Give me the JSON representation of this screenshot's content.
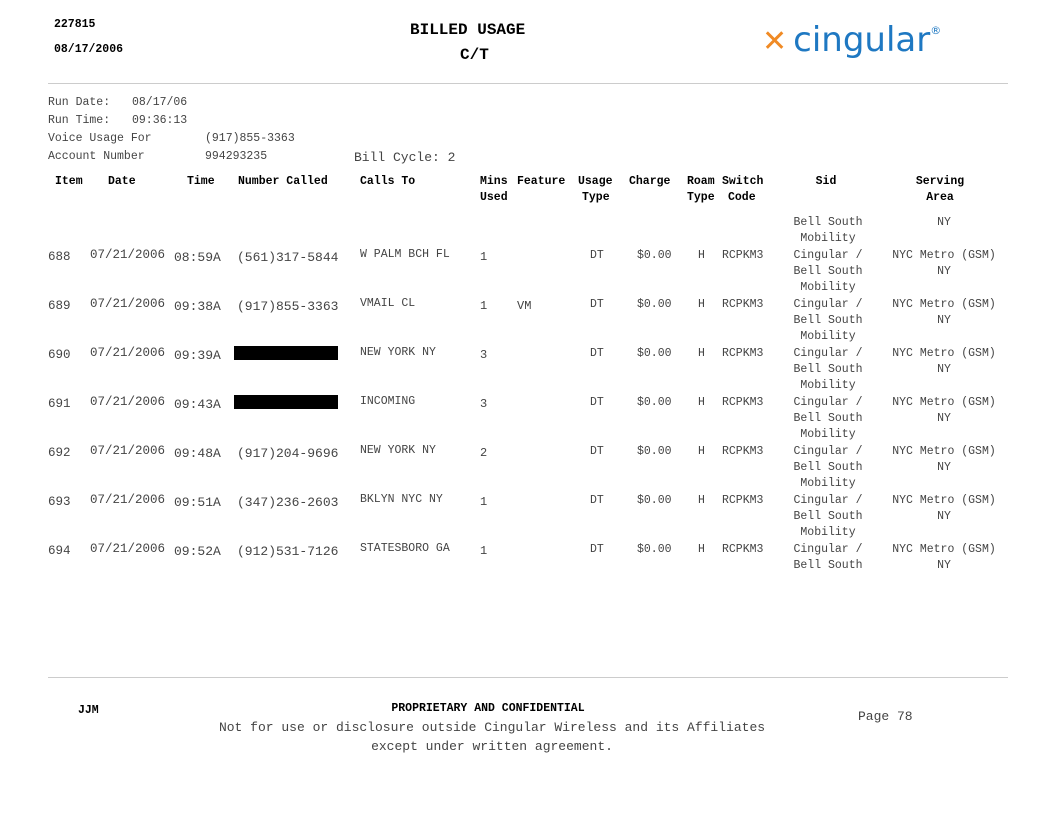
{
  "header": {
    "id": "227815",
    "date": "08/17/2006",
    "title": "BILLED USAGE",
    "subtitle": "C/T",
    "logo_text": "cingular",
    "logo_mark": "®",
    "logo_icon": "cingular-jack-icon",
    "brand_blue": "#1e78c2",
    "brand_orange": "#f08a24"
  },
  "info": {
    "run_date_label": "Run Date:",
    "run_date": "08/17/06",
    "run_time_label": "Run Time:",
    "run_time": "09:36:13",
    "voice_label": "Voice Usage For",
    "voice_number": "(917)855-3363",
    "account_label": "Account Number",
    "account_number": "994293235",
    "bill_cycle": "Bill Cycle:  2"
  },
  "columns": {
    "item": "Item",
    "date": "Date",
    "time": "Time",
    "number": "Number Called",
    "calls_to": "Calls To",
    "mins1": "Mins",
    "mins2": "Used",
    "feature": "Feature",
    "usage1": "Usage",
    "usage2": "Type",
    "charge": "Charge",
    "roam1": "Roam",
    "roam2": "Type",
    "switch1": "Switch",
    "switch2": "Code",
    "sid": "Sid",
    "area1": "Serving",
    "area2": "Area"
  },
  "carryover": {
    "sid": [
      "Bell South",
      "Mobility"
    ],
    "area": "NY"
  },
  "rows": [
    {
      "item": "688",
      "date": "07/21/2006",
      "time": "08:59A",
      "number": "(561)317-5844",
      "redacted": false,
      "calls_to": "W PALM BCH FL",
      "mins": "1",
      "feature": "",
      "usage": "DT",
      "charge": "$0.00",
      "roam": "H",
      "switch": "RCPKM3",
      "sid": [
        "Cingular /",
        "Bell South",
        "Mobility"
      ],
      "area": [
        "NYC Metro (GSM)",
        "NY"
      ]
    },
    {
      "item": "689",
      "date": "07/21/2006",
      "time": "09:38A",
      "number": "(917)855-3363",
      "redacted": false,
      "calls_to": "VMAIL CL",
      "mins": "1",
      "feature": "VM",
      "usage": "DT",
      "charge": "$0.00",
      "roam": "H",
      "switch": "RCPKM3",
      "sid": [
        "Cingular /",
        "Bell South",
        "Mobility"
      ],
      "area": [
        "NYC Metro (GSM)",
        "NY"
      ]
    },
    {
      "item": "690",
      "date": "07/21/2006",
      "time": "09:39A",
      "number": "",
      "redacted": true,
      "calls_to": "NEW YORK NY",
      "mins": "3",
      "feature": "",
      "usage": "DT",
      "charge": "$0.00",
      "roam": "H",
      "switch": "RCPKM3",
      "sid": [
        "Cingular /",
        "Bell South",
        "Mobility"
      ],
      "area": [
        "NYC Metro (GSM)",
        "NY"
      ]
    },
    {
      "item": "691",
      "date": "07/21/2006",
      "time": "09:43A",
      "number": "",
      "redacted": true,
      "calls_to": "INCOMING",
      "mins": "3",
      "feature": "",
      "usage": "DT",
      "charge": "$0.00",
      "roam": "H",
      "switch": "RCPKM3",
      "sid": [
        "Cingular /",
        "Bell South",
        "Mobility"
      ],
      "area": [
        "NYC Metro (GSM)",
        "NY"
      ]
    },
    {
      "item": "692",
      "date": "07/21/2006",
      "time": "09:48A",
      "number": "(917)204-9696",
      "redacted": false,
      "calls_to": "NEW YORK NY",
      "mins": "2",
      "feature": "",
      "usage": "DT",
      "charge": "$0.00",
      "roam": "H",
      "switch": "RCPKM3",
      "sid": [
        "Cingular /",
        "Bell South",
        "Mobility"
      ],
      "area": [
        "NYC Metro (GSM)",
        "NY"
      ]
    },
    {
      "item": "693",
      "date": "07/21/2006",
      "time": "09:51A",
      "number": "(347)236-2603",
      "redacted": false,
      "calls_to": "BKLYN NYC NY",
      "mins": "1",
      "feature": "",
      "usage": "DT",
      "charge": "$0.00",
      "roam": "H",
      "switch": "RCPKM3",
      "sid": [
        "Cingular /",
        "Bell South",
        "Mobility"
      ],
      "area": [
        "NYC Metro (GSM)",
        "NY"
      ]
    },
    {
      "item": "694",
      "date": "07/21/2006",
      "time": "09:52A",
      "number": "(912)531-7126",
      "redacted": false,
      "calls_to": "STATESBORO GA",
      "mins": "1",
      "feature": "",
      "usage": "DT",
      "charge": "$0.00",
      "roam": "H",
      "switch": "RCPKM3",
      "sid": [
        "Cingular /",
        "Bell South"
      ],
      "area": [
        "NYC Metro (GSM)",
        "NY"
      ]
    }
  ],
  "footer": {
    "initials": "JJM",
    "conf_title": "PROPRIETARY AND CONFIDENTIAL",
    "conf_line1": "Not for use or disclosure outside Cingular Wireless and its Affiliates",
    "conf_line2": "except under written agreement.",
    "page": "Page  78"
  }
}
